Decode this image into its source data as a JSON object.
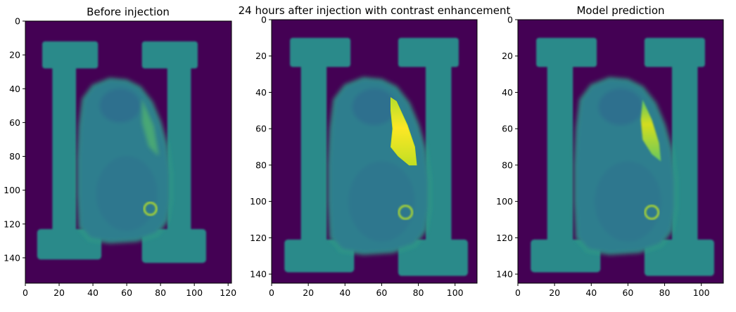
{
  "panels": [
    {
      "title": "Before injection",
      "xticks": [
        0,
        20,
        40,
        60,
        80,
        100,
        120
      ],
      "yticks": [
        0,
        20,
        40,
        60,
        80,
        100,
        120,
        140
      ],
      "xlim": [
        0,
        122
      ],
      "ylim": [
        0,
        155
      ],
      "enhancement": "none"
    },
    {
      "title": "24 hours after injection with contrast enhancement",
      "xticks": [
        0,
        20,
        40,
        60,
        80,
        100
      ],
      "yticks": [
        0,
        20,
        40,
        60,
        80,
        100,
        120,
        140
      ],
      "xlim": [
        0,
        112
      ],
      "ylim": [
        0,
        145
      ],
      "enhancement": "strong"
    },
    {
      "title": "Model prediction",
      "xticks": [
        0,
        20,
        40,
        60,
        80,
        100
      ],
      "yticks": [
        0,
        20,
        40,
        60,
        80,
        100,
        120,
        140
      ],
      "xlim": [
        0,
        112
      ],
      "ylim": [
        0,
        145
      ],
      "enhancement": "predicted"
    }
  ],
  "colors": {
    "background": "#440154",
    "phantom": "#2a8a8a",
    "tissue": "#2d7e8e",
    "tissue_bright": "#35b779",
    "ring": "#b5de2b",
    "enhanced": "#e8e419"
  }
}
